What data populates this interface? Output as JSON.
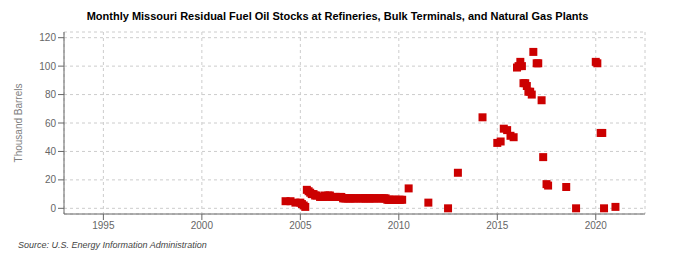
{
  "chart_data": {
    "type": "scatter",
    "title": "Monthly Missouri Residual Fuel Oil Stocks at Refineries, Bulk Terminals, and Natural Gas Plants",
    "ylabel": "Thousand Barrels",
    "annotations": [
      "Source: U.S. Energy Information Administration"
    ],
    "color": "#cc0000",
    "marker": "square",
    "grid": true,
    "xlim": [
      1993.0,
      2022.5
    ],
    "ylim": [
      -4,
      124
    ],
    "xticks": [
      1995,
      2000,
      2005,
      2010,
      2015,
      2020
    ],
    "yticks": [
      0,
      20,
      40,
      60,
      80,
      100,
      120
    ],
    "x": [
      2004.25,
      2004.5,
      2004.75,
      2005.0,
      2005.08,
      2005.17,
      2005.25,
      2005.33,
      2005.42,
      2005.5,
      2005.58,
      2005.67,
      2005.75,
      2005.83,
      2006.0,
      2006.08,
      2006.17,
      2006.25,
      2006.33,
      2006.42,
      2006.5,
      2006.58,
      2006.67,
      2006.75,
      2006.83,
      2007.0,
      2007.08,
      2007.17,
      2007.25,
      2007.33,
      2007.42,
      2007.5,
      2007.58,
      2007.67,
      2007.75,
      2007.83,
      2008.0,
      2008.08,
      2008.17,
      2008.25,
      2008.33,
      2008.42,
      2008.5,
      2008.58,
      2008.67,
      2008.75,
      2008.83,
      2009.0,
      2009.08,
      2009.17,
      2009.25,
      2009.33,
      2009.42,
      2009.5,
      2009.58,
      2009.67,
      2009.75,
      2009.83,
      2010.0,
      2010.08,
      2010.17,
      2010.5,
      2011.5,
      2012.5,
      2013.0,
      2014.25,
      2015.0,
      2015.17,
      2015.33,
      2015.5,
      2015.67,
      2015.83,
      2016.0,
      2016.08,
      2016.17,
      2016.25,
      2016.33,
      2016.42,
      2016.5,
      2016.58,
      2016.67,
      2016.75,
      2016.83,
      2017.0,
      2017.08,
      2017.25,
      2017.33,
      2017.5,
      2017.58,
      2018.5,
      2019.0,
      2020.0,
      2020.08,
      2020.25,
      2020.33,
      2020.42,
      2021.0
    ],
    "values": [
      5,
      5,
      4,
      4,
      3,
      2,
      1,
      13,
      12,
      11,
      10,
      10,
      9,
      9,
      8,
      8,
      8,
      9,
      8,
      9,
      9,
      8,
      8,
      8,
      8,
      8,
      8,
      7,
      7,
      7,
      7,
      7,
      7,
      7,
      7,
      7,
      7,
      7,
      7,
      7,
      7,
      7,
      7,
      7,
      7,
      7,
      7,
      7,
      7,
      7,
      7,
      7,
      6,
      6,
      6,
      6,
      6,
      6,
      6,
      6,
      6,
      14,
      4,
      0,
      25,
      64,
      46,
      47,
      56,
      55,
      51,
      50,
      99,
      100,
      103,
      100,
      88,
      88,
      86,
      82,
      82,
      80,
      110,
      102,
      102,
      76,
      36,
      17,
      16,
      15,
      0,
      103,
      102,
      53,
      53,
      0,
      1
    ]
  }
}
